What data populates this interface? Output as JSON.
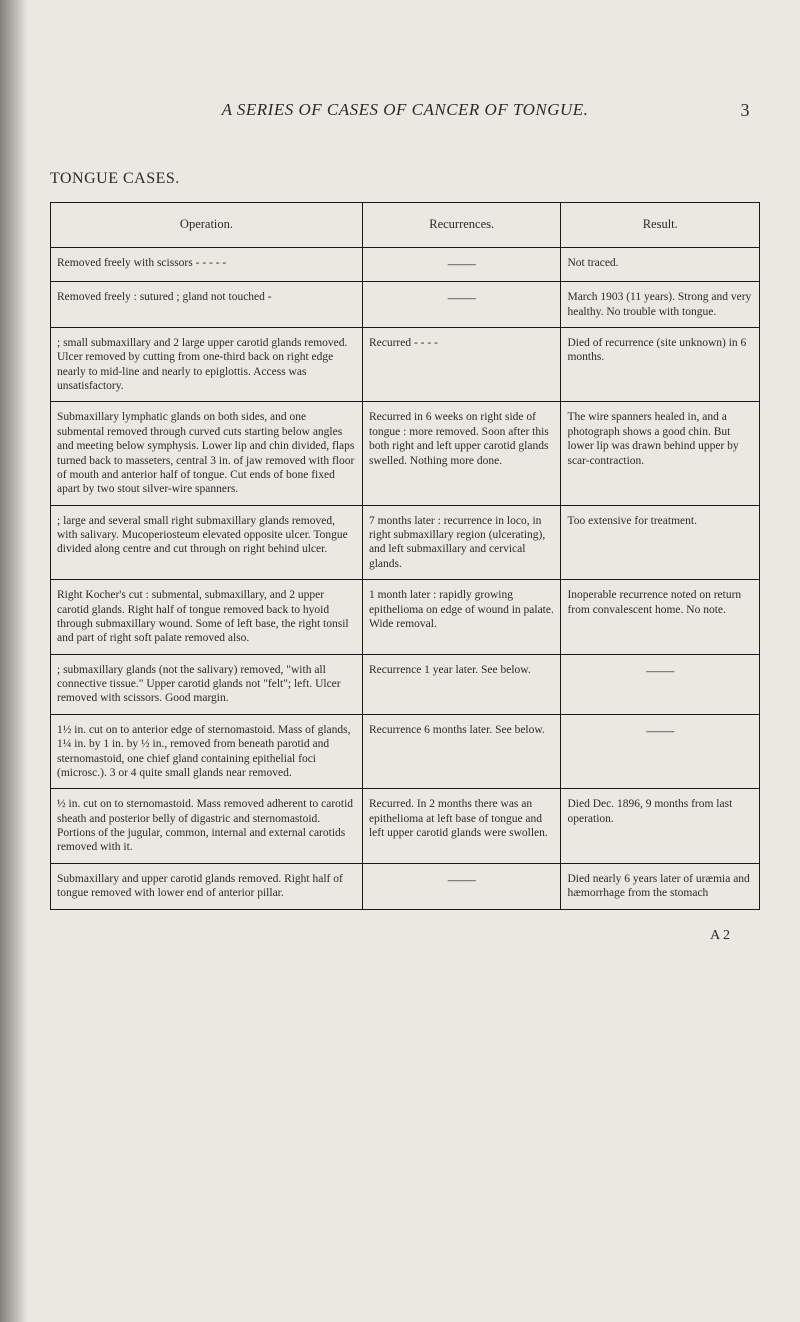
{
  "page": {
    "running_head": "A SERIES OF CASES OF CANCER OF TONGUE.",
    "page_number": "3",
    "section_title": "TONGUE CASES.",
    "footer": "A 2"
  },
  "table": {
    "headers": {
      "operation": "Operation.",
      "recurrences": "Recurrences.",
      "result": "Result."
    },
    "rows": [
      {
        "operation": "Removed freely with scissors  -  -  -  -  -",
        "recurrences": "——",
        "result": "Not traced."
      },
      {
        "operation": "Removed freely : sutured ; gland not touched   -",
        "recurrences": "——",
        "result": "March 1903 (11 years). Strong and very healthy. No trouble with tongue."
      },
      {
        "operation": "; small submaxillary and 2 large upper carotid glands removed. Ulcer removed by cutting from one-third back on right edge nearly to mid-line and nearly to epiglottis. Access was unsatisfactory.",
        "recurrences": "Recurred   -   -   -   -",
        "result": "Died of recurrence (site unknown) in 6 months."
      },
      {
        "operation": "Submaxillary lymphatic glands on both sides, and one submental removed through curved cuts starting below angles and meeting below symphysis. Lower lip and chin divided, flaps turned back to masseters, central 3 in. of jaw removed with floor of mouth and anterior half of tongue. Cut ends of bone fixed apart by two stout silver-wire spanners.",
        "recurrences": "Recurred in 6 weeks on right side of tongue : more removed. Soon after this both right and left upper carotid glands swelled. Nothing more done.",
        "result": "The wire spanners healed in, and a photograph shows a good chin. But lower lip was drawn behind upper by scar-contraction."
      },
      {
        "operation": "; large and several small right submaxillary glands removed, with salivary. Mucoperiosteum elevated opposite ulcer. Tongue divided along centre and cut through on right behind ulcer.",
        "recurrences": "7 months later : recurrence in loco, in right submaxillary region (ulcerating), and left submaxillary and cervical glands.",
        "result": "Too extensive for treatment."
      },
      {
        "operation": "Right Kocher's cut : submental, submaxillary, and 2 upper carotid glands. Right half of tongue removed back to hyoid through submaxillary wound. Some of left base, the right tonsil and part of right soft palate removed also.",
        "recurrences": "1 month later : rapidly growing epithelioma on edge of wound in palate. Wide removal.",
        "result": "Inoperable recurrence noted on return from convalescent home. No note."
      },
      {
        "operation": "; submaxillary glands (not the salivary) removed, \"with all connective tissue.\" Upper carotid glands not \"felt\"; left. Ulcer removed with scissors. Good margin.",
        "recurrences": "Recurrence 1 year later. See below.",
        "result": "——"
      },
      {
        "operation": "1½ in. cut on to anterior edge of sternomastoid. Mass of glands, 1¼ in. by 1 in. by ½ in., removed from beneath parotid and sternomastoid, one chief gland containing epithelial foci (microsc.). 3 or 4 quite small glands near removed.",
        "recurrences": "Recurrence 6 months later. See below.",
        "result": "——"
      },
      {
        "operation": "½ in. cut on to sternomastoid. Mass removed adherent to carotid sheath and posterior belly of digastric and sternomastoid. Portions of the jugular, common, internal and external carotids removed with it.",
        "recurrences": "Recurred. In 2 months there was an epithelioma at left base of tongue and left upper carotid glands were swollen.",
        "result": "Died Dec. 1896, 9 months from last operation."
      },
      {
        "operation": "Submaxillary and upper carotid glands removed. Right half of tongue removed with lower end of anterior pillar.",
        "recurrences": "——",
        "result": "Died nearly 6 years later of uræmia and hæmorrhage from the stomach"
      }
    ]
  },
  "style": {
    "background_color": "#ebe8e2",
    "text_color": "#2a2a2a",
    "border_color": "#1a1a1a",
    "body_font": "serif"
  }
}
